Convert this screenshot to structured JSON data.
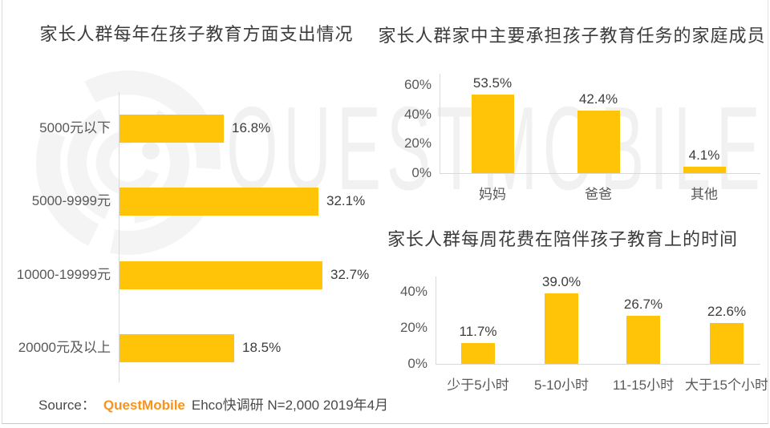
{
  "watermark": {
    "text": "QUESTMOBILE",
    "logo": "questmobile-q-logo"
  },
  "source": {
    "prefix": "Source：",
    "brand": "QuestMobile",
    "detail": "Ehco快调研 N=2,000 2019年4月"
  },
  "colors": {
    "bar": "#FFC408",
    "brand_orange": "#F7941D",
    "axis": "#D9D9D9",
    "title_text": "#3B3B3B",
    "label_text": "#595959",
    "value_text": "#3D3D3D",
    "watermark": "#F1F1F1"
  },
  "chart_data": [
    {
      "id": "annual-education-spending",
      "type": "bar",
      "orientation": "horizontal",
      "title": "家长人群每年在孩子教育方面支出情况",
      "categories": [
        "5000元以下",
        "5000-9999元",
        "10000-19999元",
        "20000元及以上"
      ],
      "values": [
        16.8,
        32.1,
        32.7,
        18.5
      ],
      "value_labels": [
        "16.8%",
        "32.1%",
        "32.7%",
        "18.5%"
      ],
      "unit": "%",
      "xlim": [
        0,
        35
      ],
      "grid": false,
      "legend": false
    },
    {
      "id": "primary-education-caregiver",
      "type": "bar",
      "orientation": "vertical",
      "title": "家长人群家中主要承担孩子教育任务的家庭成员",
      "categories": [
        "妈妈",
        "爸爸",
        "其他"
      ],
      "values": [
        53.5,
        42.4,
        4.1
      ],
      "value_labels": [
        "53.5%",
        "42.4%",
        "4.1%"
      ],
      "yticks": [
        0,
        20,
        40,
        60
      ],
      "ytick_labels": [
        "0%",
        "20%",
        "40%",
        "60%"
      ],
      "ylim": [
        0,
        66
      ],
      "grid": false,
      "legend": false
    },
    {
      "id": "weekly-companion-education-time",
      "type": "bar",
      "orientation": "vertical",
      "title": "家长人群每周花费在陪伴孩子教育上的时间",
      "categories": [
        "少于5小时",
        "5-10小时",
        "11-15小时",
        "大于15个小时"
      ],
      "values": [
        11.7,
        39.0,
        26.7,
        22.6
      ],
      "value_labels": [
        "11.7%",
        "39.0%",
        "26.7%",
        "22.6%"
      ],
      "yticks": [
        0,
        20,
        40
      ],
      "ytick_labels": [
        "0%",
        "20%",
        "40%"
      ],
      "ylim": [
        0,
        44
      ],
      "grid": false,
      "legend": false
    }
  ]
}
